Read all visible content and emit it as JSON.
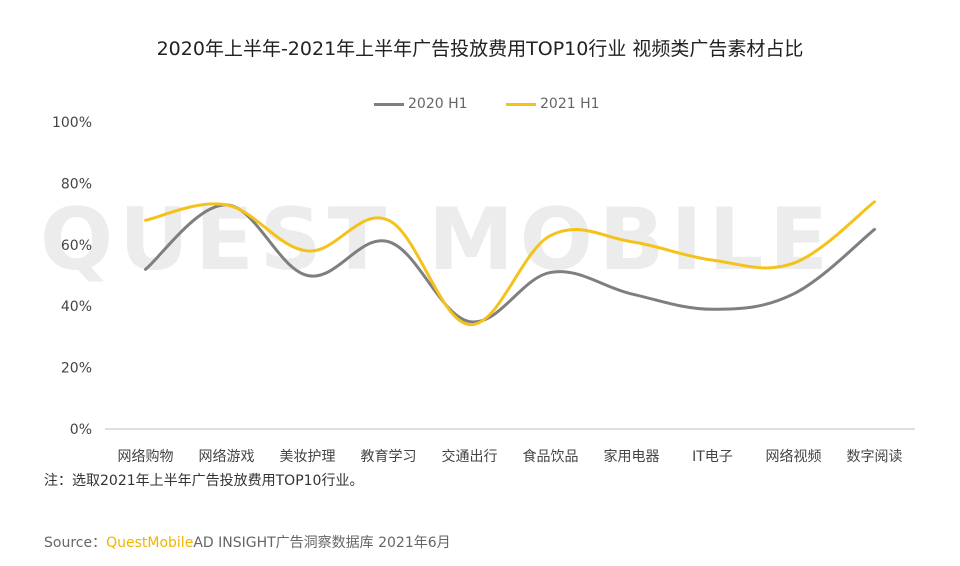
{
  "title": "2020年上半年-2021年上半年广告投放费用TOP10行业 视频类广告素材占比",
  "note": "注：选取2021年上半年广告投放费用TOP10行业。",
  "source": {
    "prefix": "Source：",
    "brand": "QuestMobile",
    "rest": "AD INSIGHT广告洞察数据库 2021年6月"
  },
  "watermark": "QUEST MOBILE",
  "chart_data": {
    "type": "line",
    "categories": [
      "网络购物",
      "网络游戏",
      "美妆护理",
      "教育学习",
      "交通出行",
      "食品饮品",
      "家用电器",
      "IT电子",
      "网络视频",
      "数字阅读"
    ],
    "series": [
      {
        "name": "2020 H1",
        "color": "#7f7f7f",
        "values": [
          52,
          73,
          50,
          61,
          35,
          51,
          44,
          39,
          44,
          65
        ]
      },
      {
        "name": "2021 H1",
        "color": "#f5c21b",
        "values": [
          68,
          73,
          58,
          68,
          34,
          63,
          61,
          55,
          54,
          74
        ]
      }
    ],
    "ylim": [
      0,
      100
    ],
    "yticks": [
      "0%",
      "20%",
      "40%",
      "60%",
      "80%",
      "100%"
    ],
    "legend_position": "top-center",
    "grid": false
  }
}
